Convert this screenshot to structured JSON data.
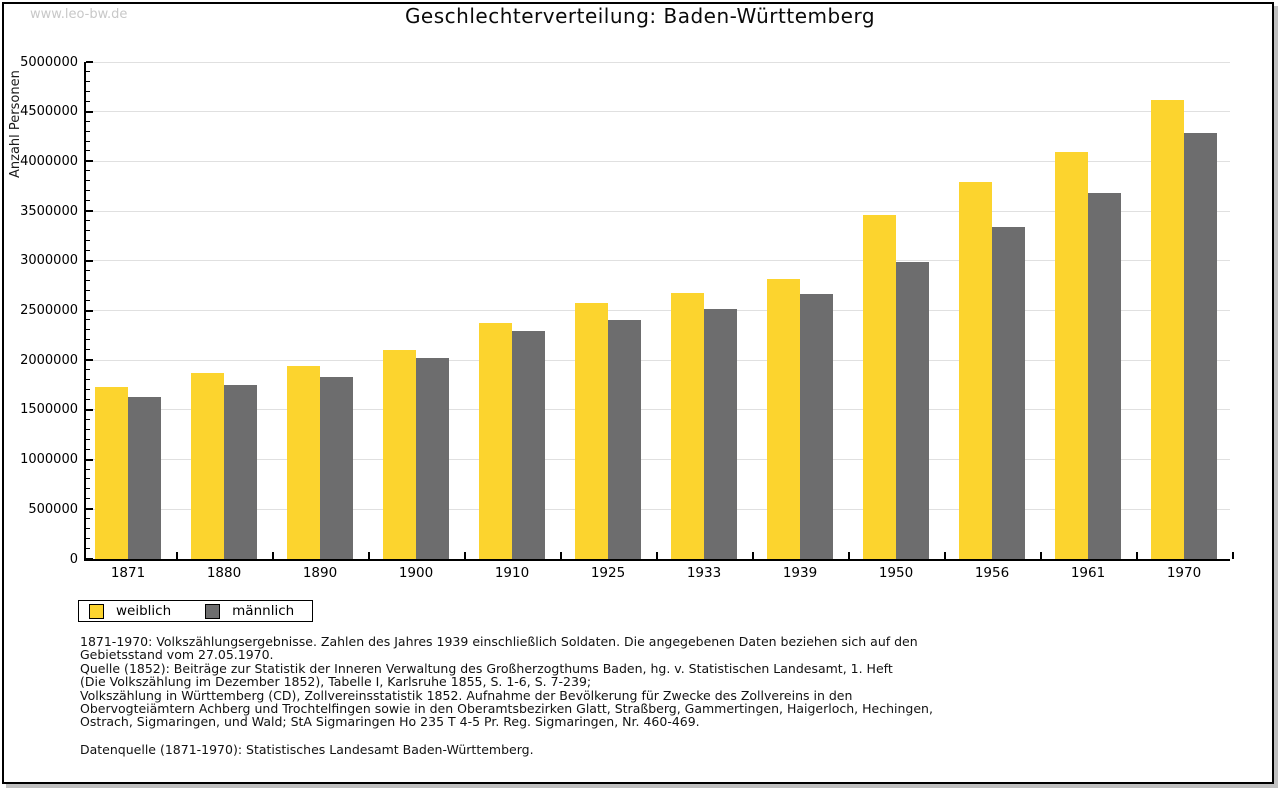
{
  "watermark": "www.leo-bw.de",
  "chart_data": {
    "type": "bar",
    "title": "Geschlechterverteilung: Baden-Württemberg",
    "ylabel": "Anzahl Personen",
    "xlabel": "",
    "categories": [
      "1871",
      "1880",
      "1890",
      "1900",
      "1910",
      "1925",
      "1933",
      "1939",
      "1950",
      "1956",
      "1961",
      "1970"
    ],
    "series": [
      {
        "name": "weiblich",
        "color": "#fcd42e",
        "values": [
          1730000,
          1870000,
          1940000,
          2100000,
          2370000,
          2580000,
          2680000,
          2820000,
          3460000,
          3790000,
          4090000,
          4620000
        ]
      },
      {
        "name": "männlich",
        "color": "#6d6d6e",
        "values": [
          1630000,
          1750000,
          1830000,
          2020000,
          2290000,
          2400000,
          2520000,
          2670000,
          2990000,
          3340000,
          3680000,
          4290000
        ]
      }
    ],
    "ylim": [
      0,
      5000000
    ],
    "y_major_step": 500000,
    "y_minor_step": 100000,
    "grid": "horizontal",
    "gridline_color": "#e0e0e0",
    "legend_position": "bottom-left"
  },
  "footnotes": {
    "lines": [
      "1871-1970: Volkszählungsergebnisse. Zahlen des Jahres 1939 einschließlich Soldaten. Die angegebenen Daten beziehen sich auf den",
      "Gebietsstand vom 27.05.1970.",
      "Quelle (1852): Beiträge zur Statistik der Inneren Verwaltung des Großherzogthums Baden, hg. v. Statistischen Landesamt, 1. Heft",
      "(Die Volkszählung im Dezember 1852), Tabelle I, Karlsruhe 1855, S. 1-6, S. 7-239;",
      "Volkszählung in Württemberg (CD), Zollvereinsstatistik 1852. Aufnahme der Bevölkerung für Zwecke des Zollvereins in den",
      "Obervogteiämtern Achberg und Trochtelfingen sowie in den Oberamtsbezirken Glatt, Straßberg, Gammertingen, Haigerloch, Hechingen,",
      "Ostrach, Sigmaringen, und Wald; StA Sigmaringen Ho 235 T 4-5 Pr. Reg. Sigmaringen, Nr. 460-469."
    ],
    "datenquelle": "Datenquelle (1871-1970): Statistisches Landesamt Baden-Württemberg."
  }
}
